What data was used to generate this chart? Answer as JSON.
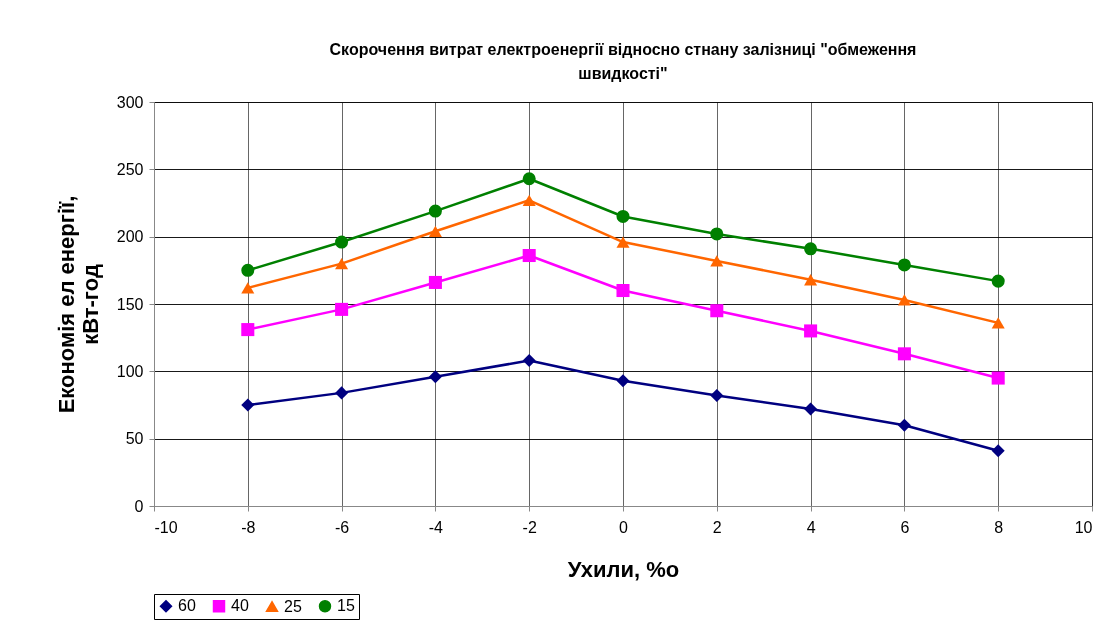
{
  "chart_data": {
    "type": "line",
    "title": "Скорочення витрат електроенергії відносно стнану залізниці \"обмеження швидкості\"",
    "xlabel": "Ухили, %о",
    "ylabel": "Економія ел енергії, кВт-год",
    "x": [
      -8,
      -6,
      -4,
      -2,
      0,
      2,
      4,
      6,
      8
    ],
    "series": [
      {
        "name": "60",
        "color": "#000080",
        "marker": "diamond",
        "values": [
          75,
          84,
          96,
          108,
          93,
          82,
          72,
          60,
          41
        ]
      },
      {
        "name": "40",
        "color": "#ff00ff",
        "marker": "square",
        "values": [
          131,
          146,
          166,
          186,
          160,
          145,
          130,
          113,
          95
        ]
      },
      {
        "name": "25",
        "color": "#ff6600",
        "marker": "triangle",
        "values": [
          162,
          180,
          204,
          227,
          196,
          182,
          168,
          153,
          136
        ]
      },
      {
        "name": "15",
        "color": "#008000",
        "marker": "circle",
        "values": [
          175,
          196,
          219,
          243,
          215,
          202,
          191,
          179,
          167
        ]
      }
    ],
    "xlim": [
      -10,
      10
    ],
    "xticks": [
      -10,
      -8,
      -6,
      -4,
      -2,
      0,
      2,
      4,
      6,
      8,
      10
    ],
    "ylim": [
      0,
      300
    ],
    "yticks": [
      0,
      50,
      100,
      150,
      200,
      250,
      300
    ],
    "grid": true,
    "legend": "bottom",
    "line_style": "solid"
  }
}
